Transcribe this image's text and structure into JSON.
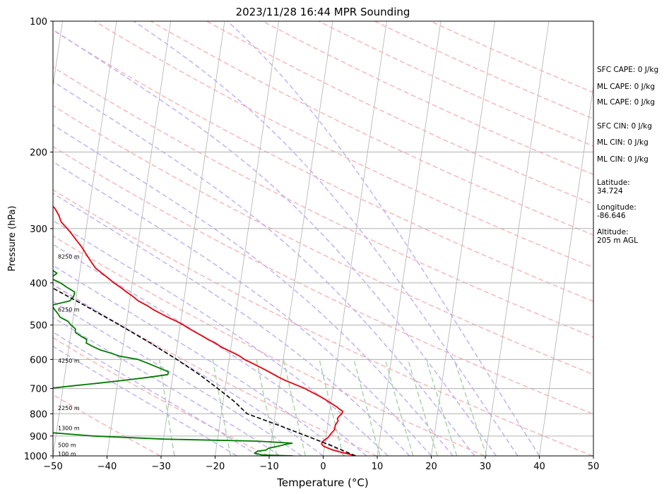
{
  "colors": {
    "temperature": "#e8000b",
    "dewpoint": "#007a00",
    "parcel": "#000000",
    "isotherm": "#b0b0b0",
    "isobar": "#b0b0b0",
    "dry_adiabat": "#f4a6a6",
    "moist_adiabat": "#b7a6f2",
    "mixing_ratio": "#9ed09e"
  },
  "chart_data": {
    "type": "line",
    "subtype": "skew-t log-p sounding",
    "title": "2023/11/28 16:44 MPR Sounding",
    "xlabel": "Temperature (°C)",
    "ylabel": "Pressure (hPa)",
    "xlim": [
      -50,
      50
    ],
    "ylim": [
      1000,
      100
    ],
    "y_scale": "log",
    "grid": true,
    "x_ticks": [
      "−50",
      "−40",
      "−30",
      "−20",
      "−10",
      "0",
      "10",
      "20",
      "30",
      "40",
      "50"
    ],
    "x_tick_values": [
      -50,
      -40,
      -30,
      -20,
      -10,
      0,
      10,
      20,
      30,
      40,
      50
    ],
    "y_ticks": [
      "100",
      "200",
      "300",
      "400",
      "500",
      "600",
      "700",
      "800",
      "900",
      "1000"
    ],
    "y_tick_values": [
      100,
      200,
      300,
      400,
      500,
      600,
      700,
      800,
      900,
      1000
    ],
    "series": [
      {
        "key": "temperature",
        "pressure": [
          1000,
          990,
          980,
          970,
          960,
          950,
          940,
          930,
          920,
          910,
          900,
          890,
          880,
          870,
          860,
          850,
          840,
          830,
          820,
          810,
          800,
          790,
          780,
          770,
          760,
          750,
          740,
          730,
          720,
          710,
          700,
          690,
          680,
          670,
          660,
          650,
          640,
          630,
          620,
          610,
          600,
          590,
          580,
          570,
          560,
          550,
          540,
          530,
          520,
          510,
          500,
          490,
          480,
          470,
          460,
          450,
          440,
          430,
          420,
          410,
          400,
          390,
          380,
          370,
          360,
          350,
          340,
          330,
          320,
          310,
          300,
          290,
          280,
          270,
          260
        ],
        "values": [
          6.0,
          4.6,
          3.1,
          1.7,
          0.7,
          -0.2,
          -0.6,
          -0.6,
          -0.2,
          0.3,
          0.6,
          0.8,
          1.1,
          1.4,
          1.4,
          1.4,
          1.6,
          1.8,
          1.6,
          1.9,
          2.3,
          2.4,
          1.7,
          1.1,
          0.3,
          -0.5,
          -1.3,
          -2.2,
          -3.2,
          -4.2,
          -5.2,
          -6.5,
          -7.8,
          -9.1,
          -10.3,
          -11.3,
          -12.4,
          -13.5,
          -14.7,
          -15.9,
          -17.2,
          -18.1,
          -19.3,
          -20.7,
          -22.0,
          -23.0,
          -24.4,
          -25.6,
          -26.9,
          -28.2,
          -29.4,
          -30.8,
          -32.5,
          -34.0,
          -35.5,
          -36.8,
          -38.4,
          -39.5,
          -40.8,
          -42.0,
          -43.4,
          -44.6,
          -45.9,
          -47.2,
          -48.0,
          -48.8,
          -49.6,
          -50.4,
          -51.4,
          -52.4,
          -53.5,
          -54.8,
          -55.4,
          -56.3,
          -57.7
        ]
      },
      {
        "key": "dewpoint",
        "pressure": [
          1000,
          995,
          985,
          975,
          970,
          960,
          950,
          940,
          935,
          925,
          915,
          900,
          880,
          860,
          840,
          830,
          820,
          810,
          800,
          790,
          780,
          775,
          760,
          740,
          720,
          705,
          690,
          680,
          670,
          660,
          650,
          645,
          640,
          625,
          610,
          600,
          590,
          580,
          570,
          560,
          550,
          540,
          530,
          520,
          510,
          500,
          490,
          480,
          470,
          460,
          450,
          440,
          430,
          420,
          410,
          400,
          390,
          380,
          370,
          360,
          350,
          340,
          330,
          320,
          310,
          300,
          295,
          290,
          285
        ],
        "values": [
          -5.6,
          -11.3,
          -12.8,
          -12.2,
          -10.8,
          -10.3,
          -8.6,
          -7.1,
          -6.1,
          -12.6,
          -30.0,
          -43.1,
          -53.2,
          -61.9,
          -62.2,
          -62.7,
          -62.5,
          -64.7,
          -64.5,
          -66.2,
          -66.8,
          -66.2,
          -63.0,
          -58.9,
          -56.5,
          -55.0,
          -48.2,
          -43.4,
          -38.9,
          -34.6,
          -31.0,
          -30.9,
          -31.0,
          -33.1,
          -35.3,
          -36.9,
          -40.3,
          -42.1,
          -44.2,
          -45.6,
          -46.9,
          -46.9,
          -48.1,
          -49.2,
          -49.3,
          -50.2,
          -50.9,
          -52.4,
          -53.0,
          -53.7,
          -54.3,
          -51.1,
          -50.5,
          -50.4,
          -51.9,
          -53.3,
          -55.3,
          -54.2,
          -55.8,
          -56.8,
          -59.9,
          -62.6,
          -66.1,
          -63.1,
          -67.6,
          -70.3,
          -72.6,
          -77.2,
          -79.3
        ]
      },
      {
        "key": "parcel",
        "pressure": [
          1000,
          950,
          900,
          850,
          800,
          750,
          700,
          650,
          600,
          550,
          500,
          450,
          400,
          350,
          300,
          270
        ],
        "values": [
          6.0,
          1.5,
          -3.6,
          -9.1,
          -15.2,
          -17.9,
          -21.3,
          -25.1,
          -29.7,
          -35.0,
          -41.2,
          -48.3,
          -56.5,
          -65.9,
          -76.8,
          -84.2
        ]
      }
    ],
    "height_markers": [
      {
        "label": "100 m",
        "pressure": 988
      },
      {
        "label": "500 m",
        "pressure": 944
      },
      {
        "label": "1300 m",
        "pressure": 863
      },
      {
        "label": "2250 m",
        "pressure": 776
      },
      {
        "label": "4250 m",
        "pressure": 604
      },
      {
        "label": "6250 m",
        "pressure": 460
      },
      {
        "label": "8250 m",
        "pressure": 348
      }
    ]
  },
  "side_panel": {
    "sfc_cape": "SFC CAPE: 0 J/kg",
    "ml_cape_1": "ML CAPE: 0 J/kg",
    "ml_cape_2": "ML CAPE: 0 J/kg",
    "sfc_cin": "SFC CIN: 0 J/kg",
    "ml_cin_1": "ML CIN: 0 J/kg",
    "ml_cin_2": "ML CIN: 0 J/kg",
    "latitude_label": "Latitude:",
    "latitude_value": "34.724",
    "longitude_label": "Longitude:",
    "longitude_value": "-86.646",
    "altitude_label": "Altitude:",
    "altitude_value": "205 m AGL"
  }
}
